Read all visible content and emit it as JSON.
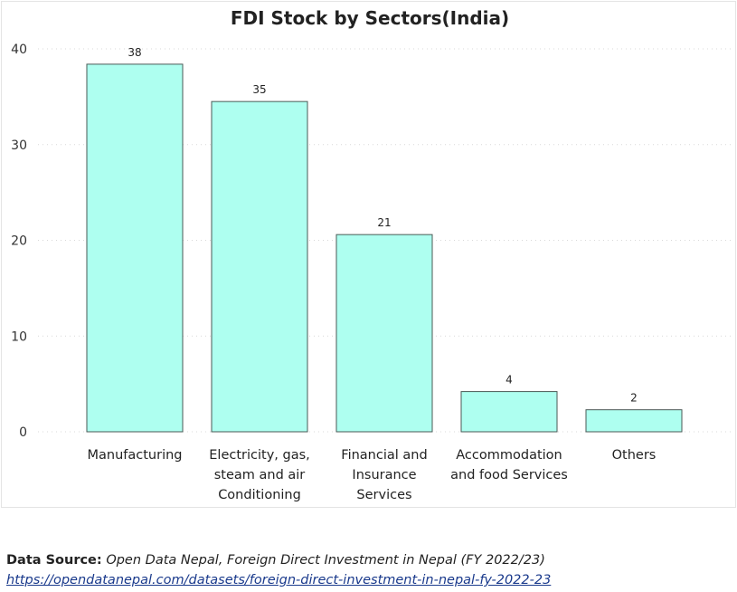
{
  "chart_data": {
    "type": "bar",
    "title": "FDI Stock by Sectors(India)",
    "xlabel": "",
    "ylabel": "",
    "ylim": [
      0,
      40
    ],
    "yticks": [
      0,
      10,
      20,
      30,
      40
    ],
    "grid": true,
    "categories": [
      "Manufacturing",
      "Electricity, gas, steam and air Conditioning",
      "Financial and Insurance Services",
      "Accommodation and food Services",
      "Others"
    ],
    "category_lines": [
      [
        "Manufacturing"
      ],
      [
        "Electricity, gas,",
        "steam and air",
        "Conditioning"
      ],
      [
        "Financial and",
        "Insurance",
        "Services"
      ],
      [
        "Accommodation",
        "and food Services"
      ],
      [
        "Others"
      ]
    ],
    "values": [
      38.4,
      34.5,
      20.6,
      4.2,
      2.3
    ],
    "data_labels": [
      "38",
      "35",
      "21",
      "4",
      "2"
    ],
    "bar_color": "#aefff0"
  },
  "footer": {
    "source_label": "Data Source:",
    "source_text": "Open Data Nepal, Foreign Direct Investment in Nepal (FY 2022/23)",
    "source_link": "https://opendatanepal.com/datasets/foreign-direct-investment-in-nepal-fy-2022-23"
  }
}
